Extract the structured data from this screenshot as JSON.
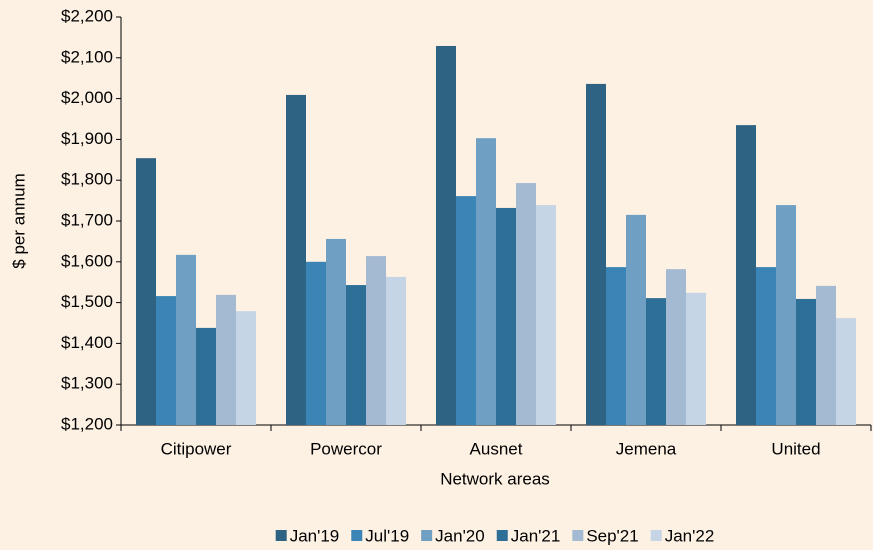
{
  "chart_data": {
    "type": "bar",
    "x_label": "Network areas",
    "y_label": "$ per annum",
    "categories": [
      "Citipower",
      "Powercor",
      "Ausnet",
      "Jemena",
      "United"
    ],
    "series": [
      {
        "name": "Jan'19",
        "color": "#2e6384",
        "values": [
          1854,
          2009,
          2129,
          2036,
          1935
        ]
      },
      {
        "name": "Jul'19",
        "color": "#3a85b5",
        "values": [
          1516,
          1600,
          1761,
          1587,
          1587
        ]
      },
      {
        "name": "Jan'20",
        "color": "#6f9fc3",
        "values": [
          1617,
          1656,
          1903,
          1715,
          1739
        ]
      },
      {
        "name": "Jan'21",
        "color": "#2d6f96",
        "values": [
          1438,
          1543,
          1732,
          1511,
          1509
        ]
      },
      {
        "name": "Sep'21",
        "color": "#a3bad2",
        "values": [
          1519,
          1614,
          1793,
          1582,
          1541
        ]
      },
      {
        "name": "Jan'22",
        "color": "#c5d5e6",
        "values": [
          1479,
          1563,
          1739,
          1524,
          1462
        ]
      }
    ],
    "ylim": [
      1200,
      2200
    ],
    "yticks": [
      {
        "value": 1200,
        "label": "$1,200"
      },
      {
        "value": 1300,
        "label": "$1,300"
      },
      {
        "value": 1400,
        "label": "$1,400"
      },
      {
        "value": 1500,
        "label": "$1,500"
      },
      {
        "value": 1600,
        "label": "$1,600"
      },
      {
        "value": 1700,
        "label": "$1,700"
      },
      {
        "value": 1800,
        "label": "$1,800"
      },
      {
        "value": 1900,
        "label": "$1,900"
      },
      {
        "value": 2000,
        "label": "$2,000"
      },
      {
        "value": 2100,
        "label": "$2,100"
      },
      {
        "value": 2200,
        "label": "$2,200"
      }
    ],
    "legend": "bottom"
  }
}
